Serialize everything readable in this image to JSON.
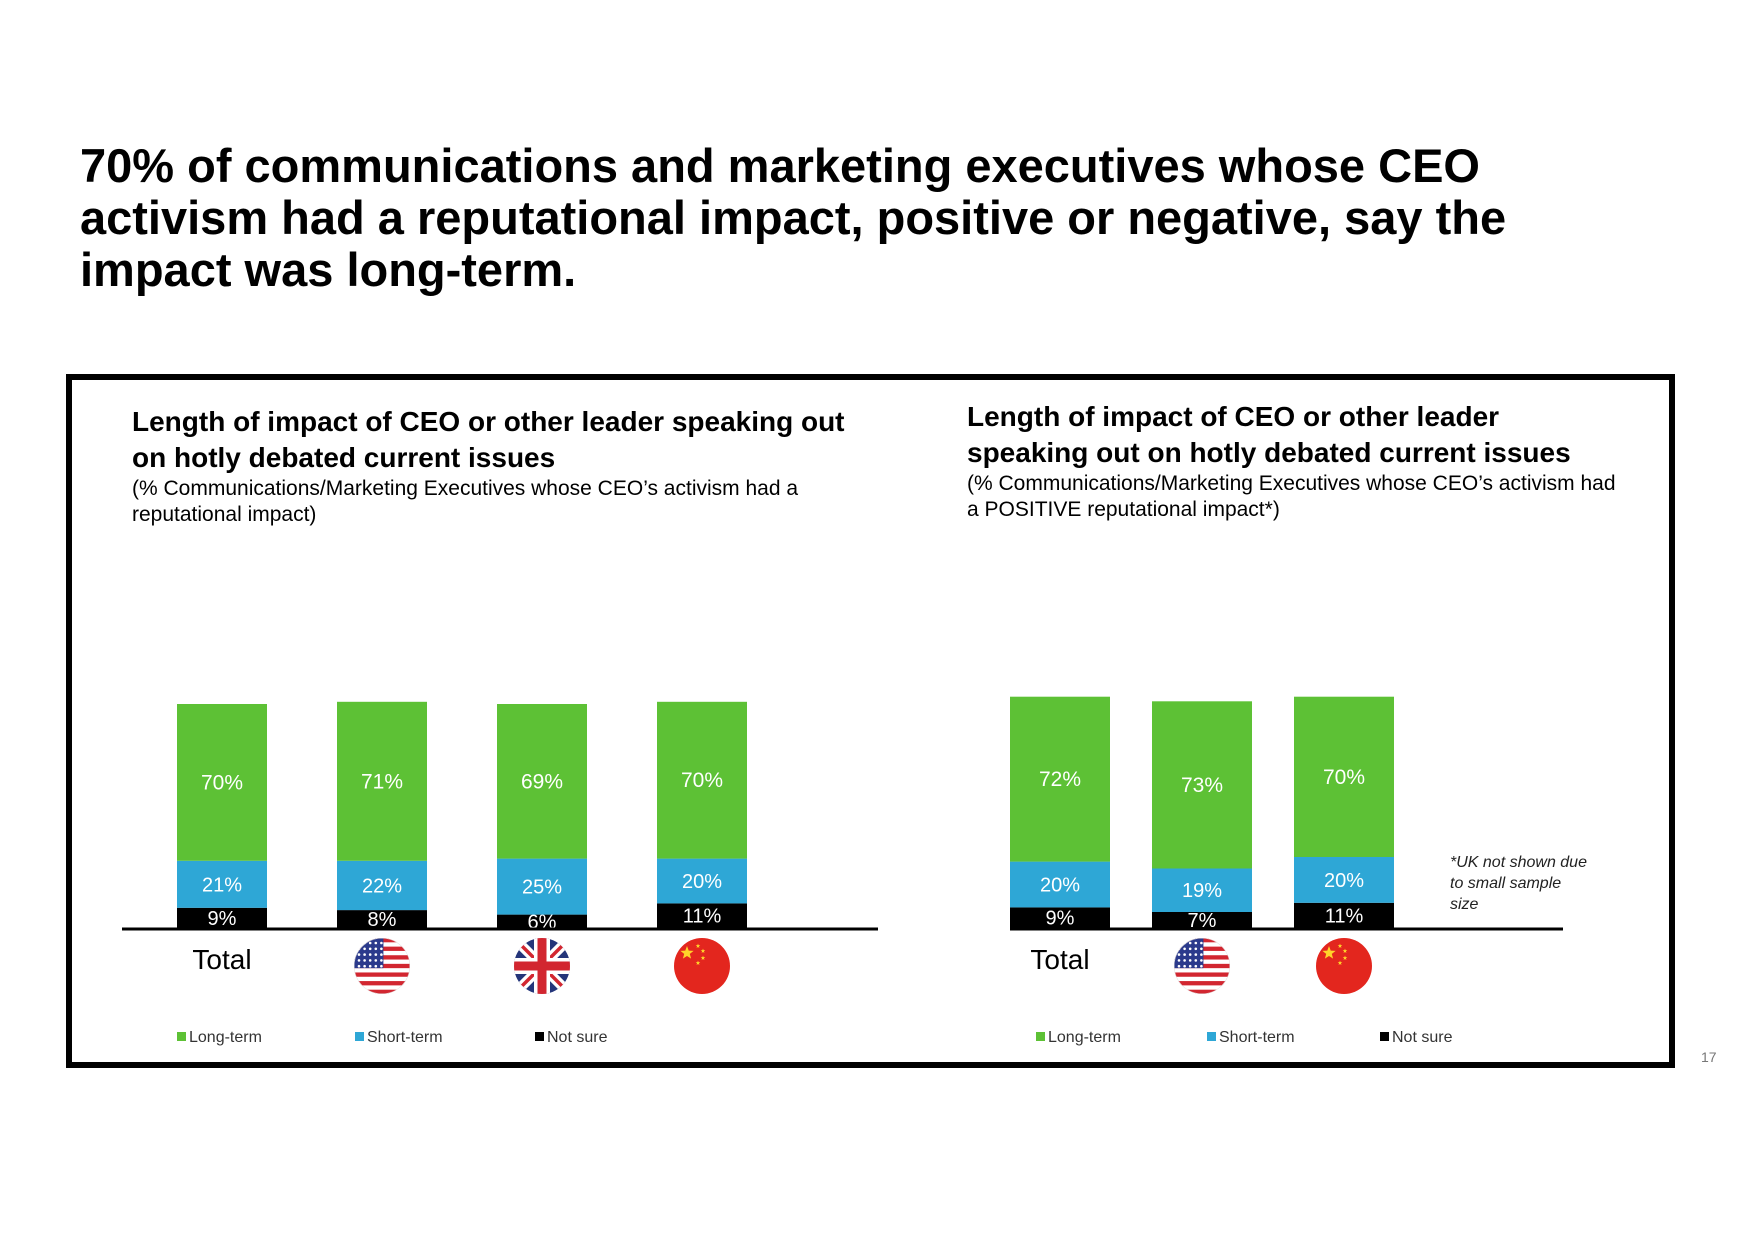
{
  "headline": "70% of communications and marketing executives whose CEO activism had a reputational impact, positive or negative, say the impact was long-term.",
  "page_number": "17",
  "footnote": "*UK not shown due to small sample size",
  "colors": {
    "long_term": "#5DC135",
    "short_term": "#2EA7D6",
    "not_sure": "#000000"
  },
  "icons": [
    "us-flag-icon",
    "uk-flag-icon",
    "china-flag-icon"
  ],
  "chart_data": [
    {
      "type": "bar",
      "stacked": true,
      "title": "Length of impact of CEO or other leader speaking out on hotly debated current issues",
      "subtitle": "(% Communications/Marketing Executives whose CEO’s activism had a reputational impact)",
      "categories": [
        "Total",
        "US",
        "UK",
        "China"
      ],
      "category_labels": [
        "Total",
        "",
        "",
        ""
      ],
      "series": [
        {
          "name": "Not sure",
          "values": [
            9,
            8,
            6,
            11
          ]
        },
        {
          "name": "Short-term",
          "values": [
            21,
            22,
            25,
            20
          ]
        },
        {
          "name": "Long-term",
          "values": [
            70,
            71,
            69,
            70
          ]
        }
      ],
      "legend": [
        "Long-term",
        "Short-term",
        "Not sure"
      ],
      "legend_position": "bottom",
      "ylim": [
        0,
        100
      ],
      "grid": false
    },
    {
      "type": "bar",
      "stacked": true,
      "title": "Length of impact of CEO or other leader speaking out on hotly debated current issues",
      "subtitle": "(% Communications/Marketing Executives whose CEO’s activism had a POSITIVE reputational impact*)",
      "categories": [
        "Total",
        "US",
        "China"
      ],
      "category_labels": [
        "Total",
        "",
        ""
      ],
      "series": [
        {
          "name": "Not sure",
          "values": [
            9,
            7,
            11
          ]
        },
        {
          "name": "Short-term",
          "values": [
            20,
            19,
            20
          ]
        },
        {
          "name": "Long-term",
          "values": [
            72,
            73,
            70
          ]
        }
      ],
      "legend": [
        "Long-term",
        "Short-term",
        "Not sure"
      ],
      "legend_position": "bottom",
      "ylim": [
        0,
        100
      ],
      "grid": false
    }
  ]
}
